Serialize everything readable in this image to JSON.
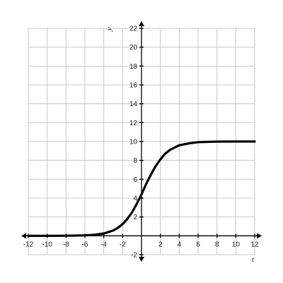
{
  "chart_data": {
    "type": "line",
    "xlabel": "t",
    "ylabel": "y",
    "xlim": [
      -12,
      12
    ],
    "ylim": [
      -2,
      22
    ],
    "x_ticks": [
      -12,
      -10,
      -8,
      -6,
      -4,
      -2,
      2,
      4,
      6,
      8,
      10,
      12
    ],
    "y_ticks": [
      -2,
      2,
      4,
      6,
      8,
      10,
      12,
      14,
      16,
      18,
      20,
      22
    ],
    "grid": true,
    "series": [
      {
        "x": [
          -12,
          -10,
          -8,
          -6,
          -5,
          -4,
          -3,
          -2.5,
          -2,
          -1.5,
          -1,
          -0.5,
          0,
          0.5,
          1,
          1.5,
          2,
          2.5,
          3,
          4,
          5,
          6,
          8,
          10,
          12
        ],
        "y": [
          0,
          0,
          0.01,
          0.05,
          0.11,
          0.25,
          0.57,
          0.85,
          1.25,
          1.8,
          2.5,
          3.4,
          4.4,
          5.5,
          6.5,
          7.4,
          8.1,
          8.7,
          9.1,
          9.6,
          9.8,
          9.93,
          9.99,
          10,
          10
        ]
      }
    ],
    "color": "#000000"
  }
}
